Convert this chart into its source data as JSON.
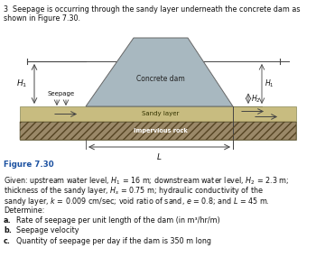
{
  "title_line1": "3  Seepage is occurring through the sandy layer underneath the concrete dam as",
  "title_line2": "shown in Figure 7.30.",
  "figure_label": "Figure 7.30",
  "background_color": "#ffffff",
  "dam_color": "#a8b8c0",
  "dam_edge_color": "#666666",
  "sandy_color": "#c8bc80",
  "sandy_edge_color": "#888855",
  "rock_color": "#9a8868",
  "rock_edge_color": "#666644",
  "line_color": "#444444",
  "text_color": "#111111",
  "figure_label_color": "#1a50a0"
}
